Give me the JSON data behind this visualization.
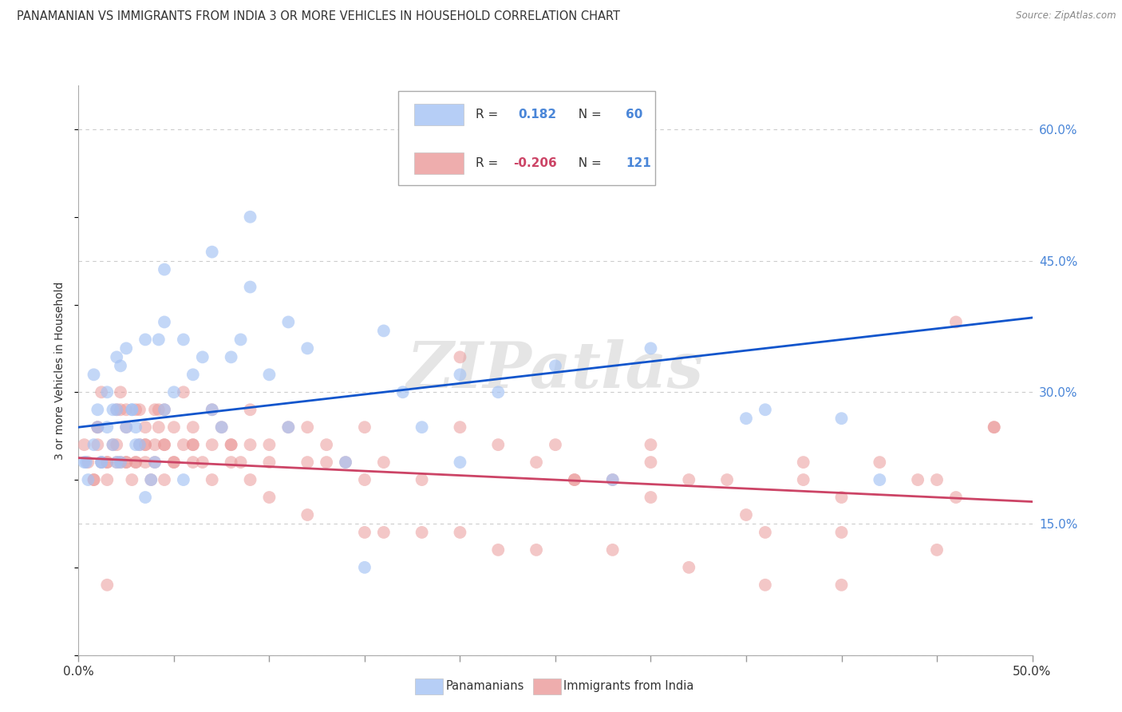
{
  "title": "PANAMANIAN VS IMMIGRANTS FROM INDIA 3 OR MORE VEHICLES IN HOUSEHOLD CORRELATION CHART",
  "source": "Source: ZipAtlas.com",
  "ylabel": "3 or more Vehicles in Household",
  "xlim": [
    0.0,
    50.0
  ],
  "ylim": [
    0.0,
    65.0
  ],
  "yticks": [
    0.0,
    15.0,
    30.0,
    45.0,
    60.0
  ],
  "xticks": [
    0,
    5,
    10,
    15,
    20,
    25,
    30,
    35,
    40,
    45,
    50
  ],
  "legend_blue_r": "0.182",
  "legend_blue_n": "60",
  "legend_pink_r": "-0.206",
  "legend_pink_n": "121",
  "blue_color": "#a4c2f4",
  "pink_color": "#ea9999",
  "blue_line_color": "#1155cc",
  "pink_line_color": "#cc4466",
  "watermark": "ZIPatlas",
  "blue_points_x": [
    0.3,
    0.5,
    0.8,
    1.0,
    1.0,
    1.2,
    1.5,
    1.5,
    1.8,
    2.0,
    2.0,
    2.0,
    2.2,
    2.5,
    2.5,
    2.8,
    3.0,
    3.0,
    3.2,
    3.5,
    3.8,
    4.0,
    4.2,
    4.5,
    4.5,
    5.0,
    5.5,
    6.0,
    6.5,
    7.0,
    7.5,
    8.0,
    8.5,
    9.0,
    10.0,
    11.0,
    12.0,
    14.0,
    16.0,
    17.0,
    18.0,
    20.0,
    22.0,
    25.0,
    30.0,
    35.0,
    40.0,
    42.0,
    0.4,
    0.8,
    1.2,
    1.8,
    2.2,
    2.8,
    3.5,
    4.5,
    5.5,
    7.0,
    9.0,
    11.0,
    15.0,
    20.0,
    28.0,
    36.0
  ],
  "blue_points_y": [
    22.0,
    20.0,
    24.0,
    26.0,
    28.0,
    22.0,
    30.0,
    26.0,
    24.0,
    22.0,
    28.0,
    34.0,
    33.0,
    35.0,
    26.0,
    28.0,
    26.0,
    24.0,
    24.0,
    36.0,
    20.0,
    22.0,
    36.0,
    38.0,
    28.0,
    30.0,
    36.0,
    32.0,
    34.0,
    28.0,
    26.0,
    34.0,
    36.0,
    42.0,
    32.0,
    38.0,
    35.0,
    22.0,
    37.0,
    30.0,
    26.0,
    32.0,
    30.0,
    33.0,
    35.0,
    27.0,
    27.0,
    20.0,
    22.0,
    32.0,
    22.0,
    28.0,
    22.0,
    28.0,
    18.0,
    44.0,
    20.0,
    46.0,
    50.0,
    26.0,
    10.0,
    22.0,
    20.0,
    28.0
  ],
  "pink_points_x": [
    0.3,
    0.5,
    0.8,
    1.0,
    1.0,
    1.2,
    1.5,
    1.5,
    1.8,
    2.0,
    2.0,
    2.2,
    2.2,
    2.5,
    2.5,
    2.8,
    3.0,
    3.0,
    3.2,
    3.5,
    3.5,
    3.8,
    4.0,
    4.0,
    4.2,
    4.5,
    4.5,
    5.0,
    5.0,
    5.5,
    6.0,
    6.0,
    6.5,
    7.0,
    7.5,
    8.0,
    8.5,
    9.0,
    10.0,
    11.0,
    12.0,
    13.0,
    14.0,
    15.0,
    16.0,
    18.0,
    20.0,
    22.0,
    24.0,
    26.0,
    28.0,
    30.0,
    32.0,
    34.0,
    36.0,
    38.0,
    40.0,
    42.0,
    44.0,
    46.0,
    48.0,
    1.0,
    1.5,
    2.0,
    2.5,
    3.0,
    3.5,
    4.0,
    4.5,
    5.0,
    6.0,
    7.0,
    8.0,
    9.0,
    10.0,
    12.0,
    15.0,
    18.0,
    22.0,
    26.0,
    30.0,
    35.0,
    40.0,
    46.0,
    0.8,
    1.5,
    2.5,
    3.5,
    4.5,
    6.0,
    8.0,
    10.0,
    13.0,
    16.0,
    20.0,
    24.0,
    28.0,
    32.0,
    36.0,
    40.0,
    45.0,
    48.0,
    1.2,
    2.2,
    3.2,
    4.2,
    5.5,
    7.0,
    9.0,
    12.0,
    15.0,
    20.0,
    25.0,
    30.0,
    38.0,
    45.0
  ],
  "pink_points_y": [
    24.0,
    22.0,
    20.0,
    24.0,
    26.0,
    22.0,
    22.0,
    20.0,
    24.0,
    22.0,
    28.0,
    22.0,
    30.0,
    22.0,
    28.0,
    20.0,
    22.0,
    28.0,
    24.0,
    26.0,
    22.0,
    20.0,
    22.0,
    28.0,
    26.0,
    24.0,
    28.0,
    26.0,
    22.0,
    24.0,
    26.0,
    24.0,
    22.0,
    24.0,
    26.0,
    24.0,
    22.0,
    24.0,
    22.0,
    26.0,
    22.0,
    24.0,
    22.0,
    20.0,
    22.0,
    20.0,
    34.0,
    24.0,
    22.0,
    20.0,
    20.0,
    22.0,
    20.0,
    20.0,
    14.0,
    20.0,
    18.0,
    22.0,
    20.0,
    38.0,
    26.0,
    26.0,
    22.0,
    24.0,
    22.0,
    22.0,
    24.0,
    24.0,
    20.0,
    22.0,
    24.0,
    20.0,
    22.0,
    20.0,
    18.0,
    16.0,
    14.0,
    14.0,
    12.0,
    20.0,
    18.0,
    16.0,
    14.0,
    18.0,
    20.0,
    8.0,
    26.0,
    24.0,
    24.0,
    22.0,
    24.0,
    24.0,
    22.0,
    14.0,
    14.0,
    12.0,
    12.0,
    10.0,
    8.0,
    8.0,
    12.0,
    26.0,
    30.0,
    28.0,
    28.0,
    28.0,
    30.0,
    28.0,
    28.0,
    26.0,
    26.0,
    26.0,
    24.0,
    24.0,
    22.0,
    20.0
  ],
  "background_color": "#ffffff",
  "grid_color": "#cccccc"
}
